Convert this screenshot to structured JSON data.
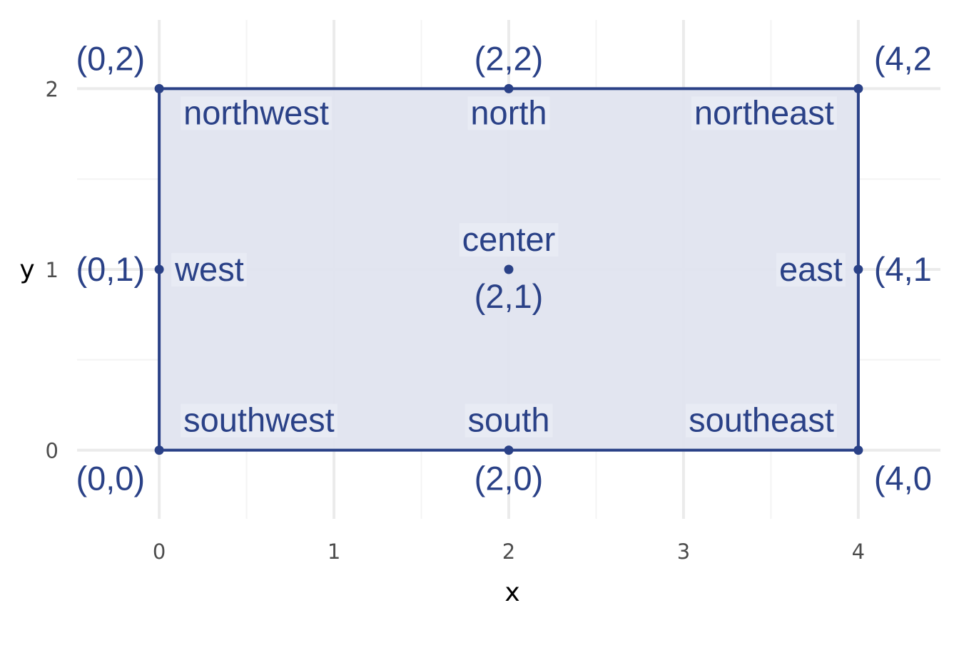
{
  "chart_data": {
    "type": "scatter",
    "title": "",
    "xlabel": "x",
    "ylabel": "y",
    "xlim": [
      -0.47,
      4.47
    ],
    "ylim": [
      -0.38,
      2.38
    ],
    "x_ticks": [
      "0",
      "1",
      "2",
      "3",
      "4"
    ],
    "y_ticks": [
      "0",
      "1",
      "2"
    ],
    "grid": true,
    "rectangle": {
      "xmin": 0,
      "xmax": 4,
      "ymin": 0,
      "ymax": 2
    },
    "points": [
      {
        "x": 0,
        "y": 0,
        "label": "(0,0)"
      },
      {
        "x": 2,
        "y": 0,
        "label": "(2,0)"
      },
      {
        "x": 4,
        "y": 0,
        "label": "(4,0"
      },
      {
        "x": 0,
        "y": 1,
        "label": "(0,1)"
      },
      {
        "x": 2,
        "y": 1,
        "label": "(2,1)"
      },
      {
        "x": 4,
        "y": 1,
        "label": "(4,1"
      },
      {
        "x": 0,
        "y": 2,
        "label": "(0,2)"
      },
      {
        "x": 2,
        "y": 2,
        "label": "(2,2)"
      },
      {
        "x": 4,
        "y": 2,
        "label": "(4,2"
      }
    ],
    "region_labels": [
      {
        "x": 0,
        "y": 2,
        "label": "northwest",
        "anchor": "nw"
      },
      {
        "x": 2,
        "y": 2,
        "label": "north",
        "anchor": "n"
      },
      {
        "x": 4,
        "y": 2,
        "label": "northeast",
        "anchor": "ne"
      },
      {
        "x": 0,
        "y": 1,
        "label": "west",
        "anchor": "w"
      },
      {
        "x": 2,
        "y": 1,
        "label": "center",
        "anchor": "c"
      },
      {
        "x": 4,
        "y": 1,
        "label": "east",
        "anchor": "e"
      },
      {
        "x": 0,
        "y": 0,
        "label": "southwest",
        "anchor": "sw"
      },
      {
        "x": 2,
        "y": 0,
        "label": "south",
        "anchor": "s"
      },
      {
        "x": 4,
        "y": 0,
        "label": "southeast",
        "anchor": "se"
      }
    ],
    "colors": {
      "accent": "#2a4187",
      "fill": "#dfe3ef",
      "label_bg": "#e9ecf4",
      "grid_major": "#ebebeb",
      "grid_minor": "#f4f4f4"
    }
  }
}
